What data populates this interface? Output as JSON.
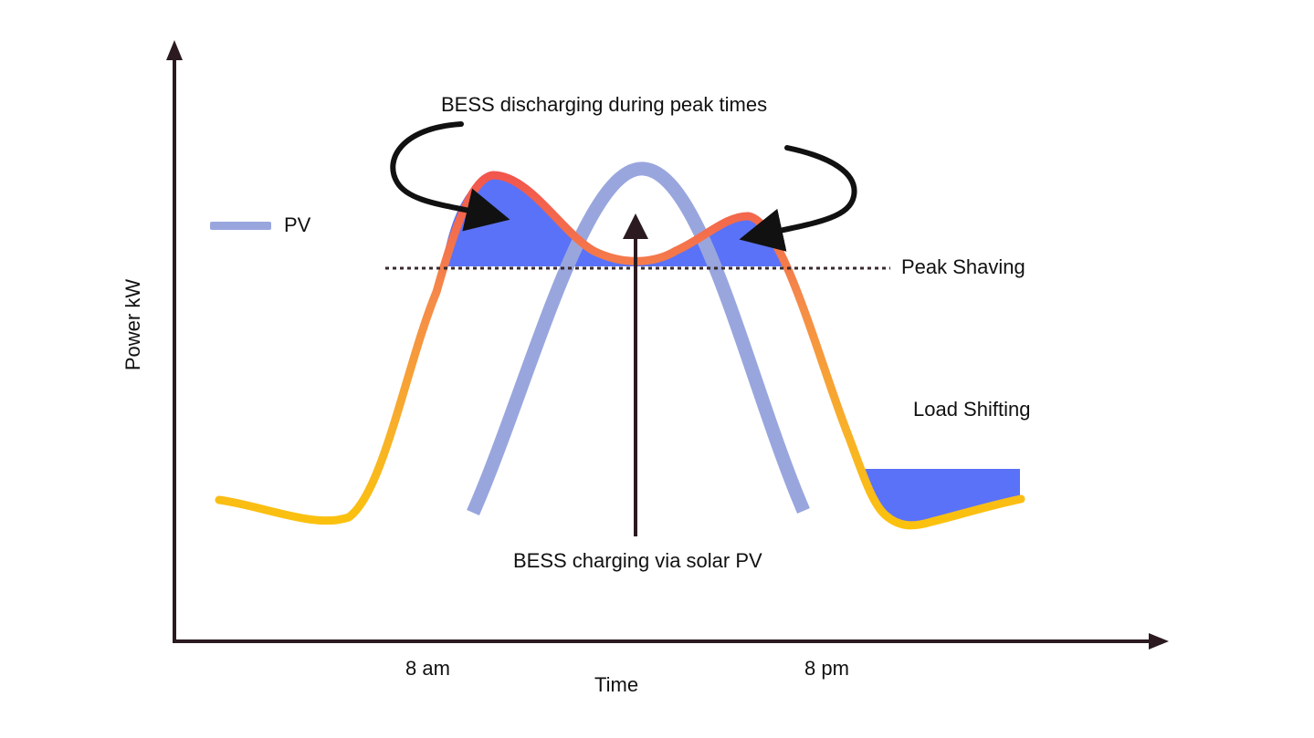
{
  "title": "BESS discharging during peak times",
  "annotations": {
    "peak_shaving": "Peak Shaving",
    "load_shifting": "Load Shifting",
    "charging": "BESS charging via solar PV"
  },
  "axes": {
    "x_label": "Time",
    "y_label": "Power kW",
    "x_ticks": [
      "8 am",
      "8 pm"
    ]
  },
  "legend": {
    "label": "PV",
    "color": "#99a6de"
  },
  "colors": {
    "axis": "#2b1a1f",
    "fill": "#5a72f7",
    "load_top": "#f06452",
    "load_bottom": "#fbbd0a",
    "pv": "#99a6de",
    "arrow": "#000000",
    "text": "#111111"
  },
  "icons": {
    "discharge_arrows": "curved-arrow-icon",
    "charge_arrow": "straight-arrow-icon"
  }
}
